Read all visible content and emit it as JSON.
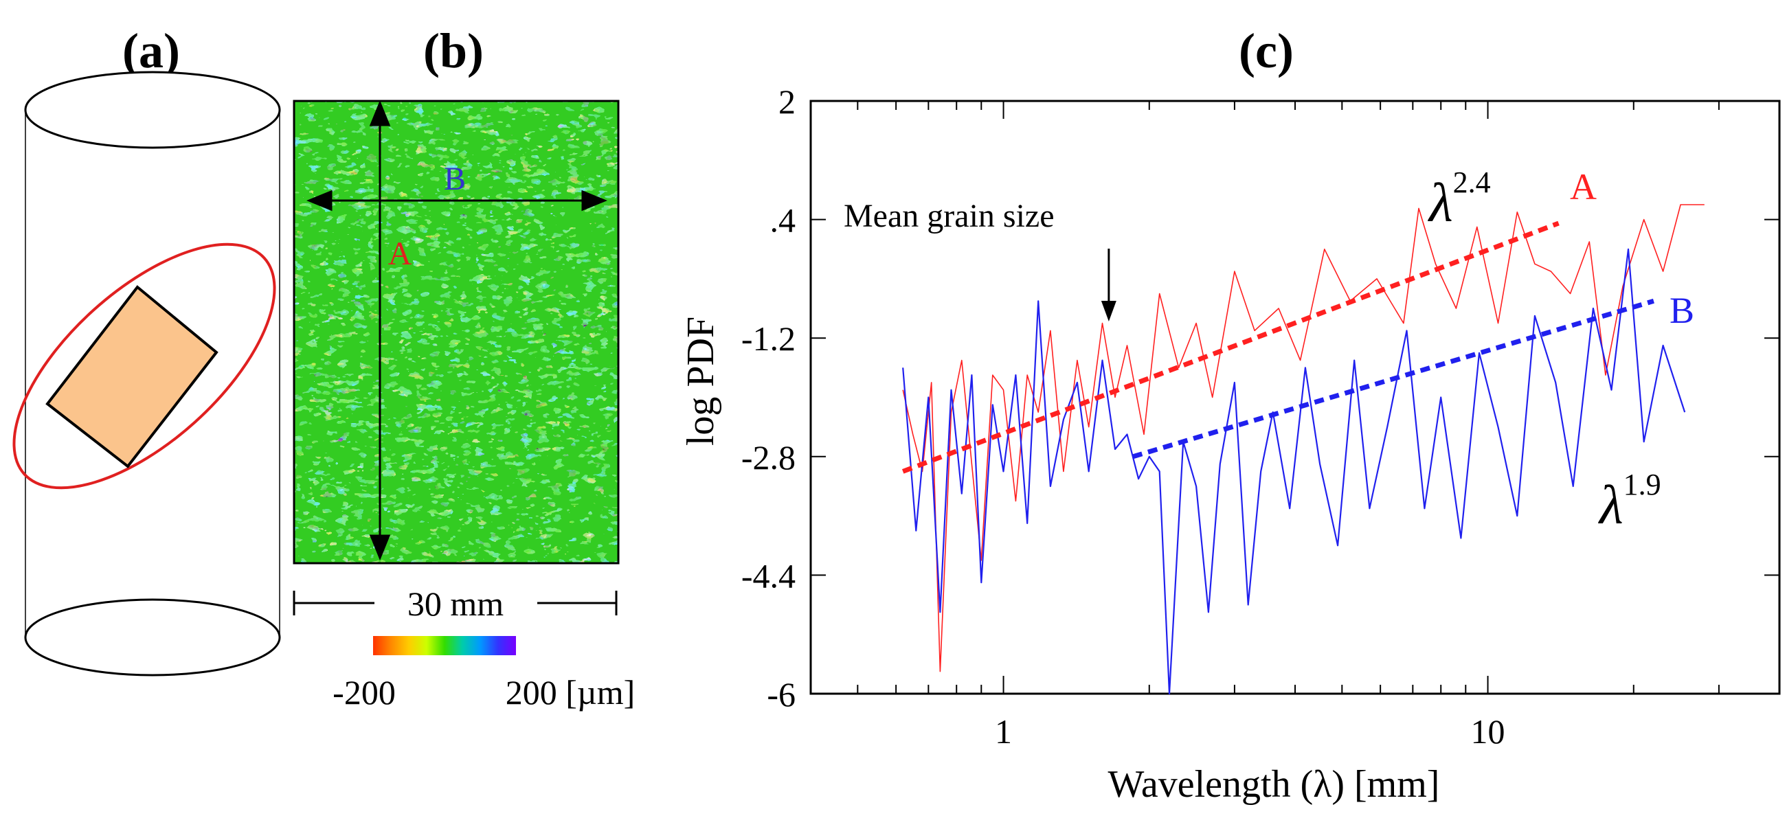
{
  "panels": {
    "a": {
      "label": "(a)"
    },
    "b": {
      "label": "(b)",
      "arrow_a_label": "A",
      "arrow_b_label": "B",
      "scale_bar_label": "30 mm",
      "colorbar": {
        "min_label": "-200",
        "max_label": "200 [µm]",
        "colors": [
          "#ff3300",
          "#ff8800",
          "#ffcc00",
          "#ccff00",
          "#33dd00",
          "#00ccaa",
          "#0099ff",
          "#3333ff",
          "#7700ff"
        ]
      }
    },
    "c": {
      "label": "(c)"
    }
  },
  "chart_data": {
    "type": "line",
    "title": "(c)",
    "xlabel": "Wavelength (λ) [mm]",
    "ylabel": "log PDF",
    "xscale": "log",
    "xlim": [
      0.4,
      40
    ],
    "ylim": [
      -6,
      2
    ],
    "xticks": [
      {
        "value": 1,
        "label": "1"
      },
      {
        "value": 10,
        "label": "10"
      }
    ],
    "yticks": [
      {
        "value": 2,
        "label": "2"
      },
      {
        "value": 0.4,
        "label": ".4"
      },
      {
        "value": -1.2,
        "label": "-1.2"
      },
      {
        "value": -2.8,
        "label": "-2.8"
      },
      {
        "value": -4.4,
        "label": "-4.4"
      },
      {
        "value": -6,
        "label": "-6"
      }
    ],
    "series": [
      {
        "name": "A",
        "color": "#ff2020",
        "x": [
          0.62,
          0.65,
          0.68,
          0.71,
          0.74,
          0.78,
          0.82,
          0.86,
          0.9,
          0.95,
          1.0,
          1.06,
          1.12,
          1.18,
          1.25,
          1.33,
          1.42,
          1.5,
          1.6,
          1.7,
          1.8,
          1.95,
          2.1,
          2.3,
          2.5,
          2.7,
          3.0,
          3.3,
          3.7,
          4.1,
          4.6,
          5.2,
          5.9,
          6.7,
          7.2,
          7.8,
          8.6,
          9.5,
          10.5,
          11.5,
          12.5,
          13.5,
          14.8,
          16.2,
          17.5,
          19.0,
          21.0,
          23.0,
          25.0,
          28.0
        ],
        "y": [
          -1.9,
          -2.5,
          -3.0,
          -1.8,
          -5.7,
          -2.2,
          -1.5,
          -2.9,
          -4.2,
          -1.7,
          -1.9,
          -3.4,
          -1.7,
          -2.2,
          -1.1,
          -3.0,
          -1.5,
          -2.4,
          -1.0,
          -2.0,
          -1.3,
          -2.5,
          -0.6,
          -1.6,
          -1.0,
          -2.0,
          -0.3,
          -1.1,
          -0.8,
          -1.5,
          0.0,
          -0.7,
          -0.4,
          -1.0,
          0.55,
          -0.2,
          -0.8,
          0.3,
          -1.0,
          0.5,
          -0.2,
          -0.3,
          -0.6,
          0.1,
          -1.7,
          -0.5,
          0.4,
          -0.3,
          0.6,
          0.6
        ]
      },
      {
        "name": "B",
        "color": "#2020ee",
        "x": [
          0.62,
          0.66,
          0.7,
          0.74,
          0.78,
          0.82,
          0.86,
          0.9,
          0.95,
          1.0,
          1.06,
          1.12,
          1.18,
          1.25,
          1.33,
          1.42,
          1.5,
          1.6,
          1.7,
          1.8,
          1.9,
          2.0,
          2.1,
          2.2,
          2.35,
          2.5,
          2.65,
          2.8,
          3.0,
          3.2,
          3.4,
          3.6,
          3.9,
          4.2,
          4.5,
          4.9,
          5.3,
          5.7,
          6.2,
          6.8,
          7.4,
          8.0,
          8.8,
          9.6,
          10.5,
          11.5,
          12.5,
          13.8,
          15.0,
          16.5,
          18.0,
          19.5,
          21.0,
          23.0,
          25.5
        ],
        "y": [
          -1.6,
          -3.8,
          -2.0,
          -4.9,
          -1.9,
          -3.3,
          -1.7,
          -4.5,
          -2.1,
          -3.0,
          -1.7,
          -3.7,
          -0.7,
          -3.2,
          -2.3,
          -1.8,
          -3.0,
          -1.5,
          -2.7,
          -2.5,
          -3.1,
          -2.8,
          -3.0,
          -6.0,
          -2.6,
          -3.2,
          -4.9,
          -2.9,
          -1.8,
          -4.8,
          -3.0,
          -2.2,
          -3.5,
          -1.6,
          -2.9,
          -4.0,
          -1.5,
          -3.5,
          -2.4,
          -1.1,
          -3.5,
          -2.0,
          -3.9,
          -1.4,
          -2.4,
          -3.6,
          -0.9,
          -1.8,
          -3.2,
          -0.8,
          -1.9,
          0.0,
          -2.6,
          -1.3,
          -2.2
        ]
      }
    ],
    "fits": [
      {
        "name": "A fit",
        "label_base": "λ",
        "label_exp": "2.4",
        "color": "#ff2020",
        "x": [
          0.62,
          14.0
        ],
        "y": [
          -3.0,
          0.35
        ]
      },
      {
        "name": "B fit",
        "label_base": "λ",
        "label_exp": "1.9",
        "color": "#2020ee",
        "x": [
          1.85,
          22.0
        ],
        "y": [
          -2.8,
          -0.7
        ]
      }
    ],
    "series_labels": [
      {
        "text": "A",
        "color": "#ff2020"
      },
      {
        "text": "B",
        "color": "#2020ee"
      }
    ],
    "annotation": {
      "text": "Mean grain size",
      "x": 1.65
    }
  }
}
